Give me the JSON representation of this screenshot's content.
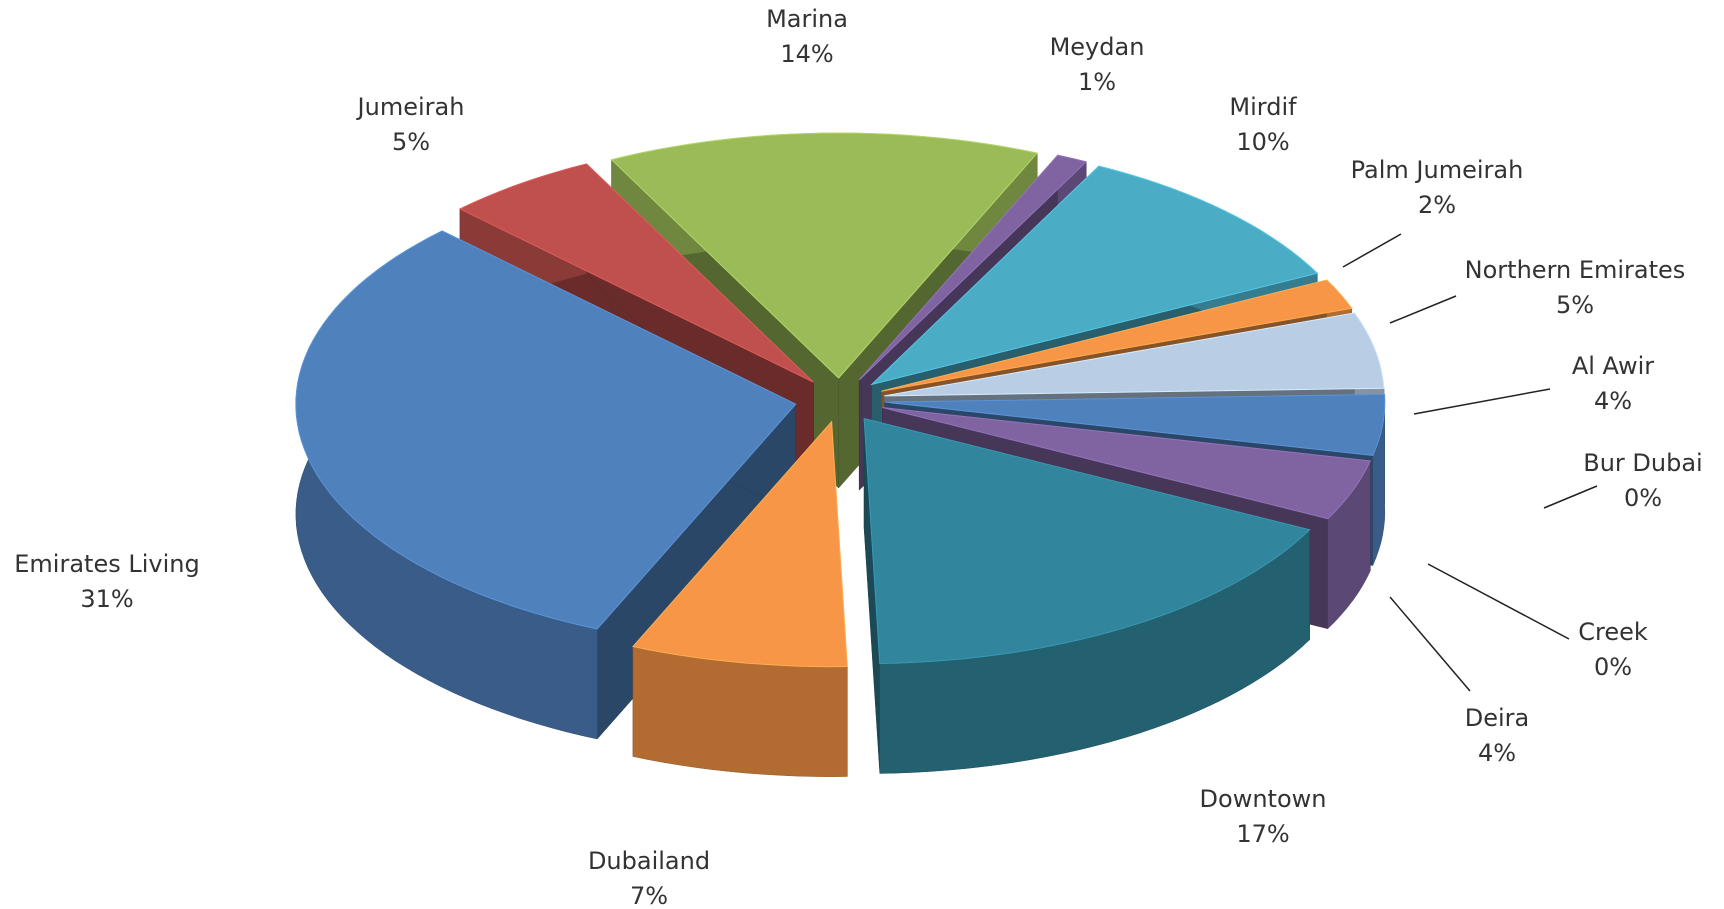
{
  "chart_data": {
    "type": "pie",
    "categories": [
      "Marina",
      "Meydan",
      "Mirdif",
      "Palm Jumeirah",
      "Northern Emirates",
      "Al Awir",
      "Bur Dubai",
      "Creek",
      "Deira",
      "Downtown",
      "Dubailand",
      "Emirates Living",
      "Jumeirah"
    ],
    "values": [
      14,
      1,
      10,
      2,
      5,
      4,
      0,
      0,
      4,
      17,
      7,
      31,
      5
    ],
    "value_labels": [
      "14%",
      "1%",
      "10%",
      "2%",
      "5%",
      "4%",
      "0%",
      "0%",
      "4%",
      "17%",
      "7%",
      "31%",
      "5%"
    ],
    "colors": [
      "#9bbb59",
      "#8064a2",
      "#4bacc6",
      "#f79646",
      "#b9cde5",
      "#4f81bd",
      "#c0504d",
      "#4f6228",
      "#8064a2",
      "#31859c",
      "#f79646",
      "#4f81bd",
      "#c0504d"
    ]
  }
}
